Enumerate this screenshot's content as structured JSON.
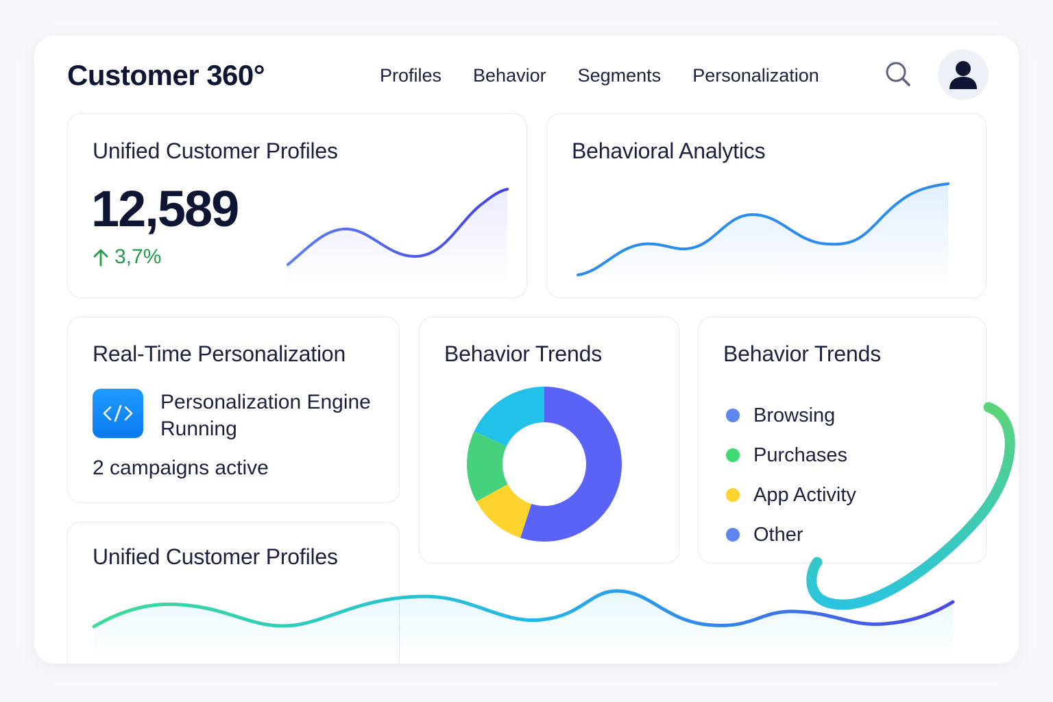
{
  "app": {
    "title": "Customer 360°"
  },
  "nav": {
    "items": [
      "Profiles",
      "Behavior",
      "Segments",
      "Personalization"
    ]
  },
  "header": {
    "search_icon": "search-icon",
    "avatar_icon": "user-icon"
  },
  "profiles_card": {
    "title": "Unified Customer Profiles",
    "value": "12,589",
    "delta": "3,7%",
    "delta_icon": "arrow-up-icon",
    "delta_color": "#1f9d4a",
    "line_color": "#4b55e8"
  },
  "analytics_card": {
    "title": "Behavioral Analytics",
    "line_color": "#2b8cf0"
  },
  "personalization_card": {
    "title": "Real-Time Personalization",
    "engine_status": "Personalization Engine Running",
    "campaigns": "2 campaigns active",
    "icon": "code-icon",
    "icon_color": "#0a7bf0"
  },
  "trends_donut": {
    "title": "Behavior Trends",
    "slices": [
      {
        "color": "#5b63f6",
        "value": 55
      },
      {
        "color": "#ffd32e",
        "value": 12
      },
      {
        "color": "#46d17d",
        "value": 15
      },
      {
        "color": "#22c1e9",
        "value": 18
      }
    ]
  },
  "trends_legend": {
    "title": "Behavior Trends",
    "items": [
      {
        "label": "Browsing",
        "color": "#5f86ef"
      },
      {
        "label": "Purchases",
        "color": "#3ddb72"
      },
      {
        "label": "App Activity",
        "color": "#ffd32e"
      },
      {
        "label": "Other",
        "color": "#5f86ef"
      }
    ]
  },
  "profiles_bottom": {
    "title": "Unified Customer Profiles"
  }
}
